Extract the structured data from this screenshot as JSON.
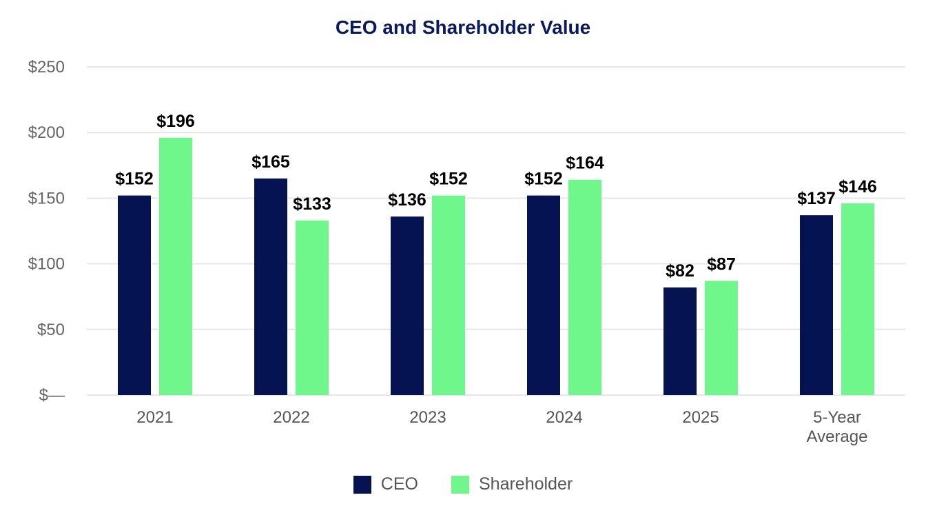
{
  "chart_data": {
    "type": "bar",
    "title": "CEO and Shareholder Value",
    "categories": [
      "2021",
      "2022",
      "2023",
      "2024",
      "2025",
      "5-Year Average"
    ],
    "series": [
      {
        "name": "CEO",
        "color": "#051353",
        "values": [
          152,
          165,
          136,
          152,
          82,
          137
        ],
        "labels": [
          "$152",
          "$165",
          "$136",
          "$152",
          "$82",
          "$137"
        ]
      },
      {
        "name": "Shareholder",
        "color": "#6ff78b",
        "values": [
          196,
          133,
          152,
          164,
          87,
          146
        ],
        "labels": [
          "$196",
          "$133",
          "$152",
          "$164",
          "$87",
          "$146"
        ]
      }
    ],
    "ylim": [
      0,
      250
    ],
    "yticks": [
      0,
      50,
      100,
      150,
      200,
      250
    ],
    "ytick_labels": [
      "$—",
      "$50",
      "$100",
      "$150",
      "$200",
      "$250"
    ],
    "xlabel": "",
    "ylabel": "",
    "grid": true,
    "legend_position": "bottom"
  },
  "legend": {
    "ceo_label": "CEO",
    "shareholder_label": "Shareholder"
  }
}
